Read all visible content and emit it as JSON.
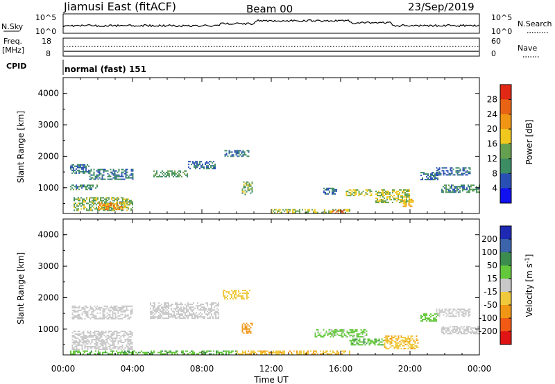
{
  "header": {
    "title": "Jiamusi East (fitACF)",
    "beam": "Beam 00",
    "date": "23/Sep/2019"
  },
  "top_panel": {
    "nsky_label": "N.Sky",
    "nsky_ticks": [
      "10^5",
      "10^0"
    ],
    "nsearch_label": "N.Search",
    "nsearch_ticks": [
      "10^5",
      "10^0"
    ],
    "freq_label": "Freq.",
    "freq_unit": "[MHz]",
    "freq_ticks": [
      "18",
      "8"
    ],
    "nave_label": "Nave",
    "nave_ticks": [
      "60",
      "0"
    ],
    "cpid_label": "CPID",
    "cpid_value": "normal (fast) 151"
  },
  "chart_data": [
    {
      "type": "heatmap",
      "name": "power-panel",
      "ylabel": "Slant Range [km]",
      "ylim": [
        180,
        4500
      ],
      "yticks": [
        "1000",
        "2000",
        "3000",
        "4000"
      ],
      "xlim_hours": [
        0,
        24
      ],
      "colorbar": {
        "label": "Power [dB]",
        "tick_labels": [
          "4",
          "8",
          "12",
          "16",
          "20",
          "24",
          "28"
        ],
        "colors": [
          "#1010f0",
          "#2850b4",
          "#3c8c64",
          "#64a050",
          "#f0c81e",
          "#f09614",
          "#e86414",
          "#e02814"
        ]
      },
      "regions": [
        {
          "x": [
            0.4,
            1.5
          ],
          "y": [
            1450,
            1750
          ],
          "value": 8
        },
        {
          "x": [
            1.5,
            4.0
          ],
          "y": [
            1250,
            1600
          ],
          "value": 8
        },
        {
          "x": [
            5.2,
            7.2
          ],
          "y": [
            1350,
            1550
          ],
          "value": 12
        },
        {
          "x": [
            7.2,
            8.8
          ],
          "y": [
            1600,
            1850
          ],
          "value": 8
        },
        {
          "x": [
            9.3,
            10.7
          ],
          "y": [
            2000,
            2200
          ],
          "value": 8
        },
        {
          "x": [
            10.3,
            10.9
          ],
          "y": [
            800,
            1200
          ],
          "value": 14
        },
        {
          "x": [
            0.4,
            2.0
          ],
          "y": [
            950,
            1100
          ],
          "value": 10
        },
        {
          "x": [
            0.6,
            4.0
          ],
          "y": [
            300,
            700
          ],
          "value": 14
        },
        {
          "x": [
            2.0,
            3.6
          ],
          "y": [
            300,
            550
          ],
          "value": 22
        },
        {
          "x": [
            15.0,
            15.8
          ],
          "y": [
            800,
            1000
          ],
          "value": 8
        },
        {
          "x": [
            16.3,
            17.8
          ],
          "y": [
            750,
            950
          ],
          "value": 16
        },
        {
          "x": [
            18.0,
            20.0
          ],
          "y": [
            550,
            950
          ],
          "value": 16
        },
        {
          "x": [
            19.5,
            20.2
          ],
          "y": [
            400,
            650
          ],
          "value": 20
        },
        {
          "x": [
            20.6,
            21.6
          ],
          "y": [
            1250,
            1500
          ],
          "value": 8
        },
        {
          "x": [
            21.5,
            23.5
          ],
          "y": [
            1400,
            1650
          ],
          "value": 8
        },
        {
          "x": [
            21.8,
            24.0
          ],
          "y": [
            850,
            1100
          ],
          "value": 10
        },
        {
          "x": [
            12.0,
            16.5
          ],
          "y": [
            200,
            320
          ],
          "value": 16
        },
        {
          "x": [
            15.5,
            16.2
          ],
          "y": [
            200,
            300
          ],
          "value": 28
        }
      ]
    },
    {
      "type": "heatmap",
      "name": "velocity-panel",
      "ylabel": "Slant Range [km]",
      "ylim": [
        180,
        4500
      ],
      "yticks": [
        "1000",
        "2000",
        "3000",
        "4000"
      ],
      "xlim_hours": [
        0,
        24
      ],
      "xticks": [
        "00:00",
        "04:00",
        "08:00",
        "12:00",
        "16:00",
        "20:00",
        "00:00"
      ],
      "xlabel": "Time UT",
      "colorbar": {
        "label": "Velocity [m s",
        "label_sup": "-1",
        "tick_labels": [
          "200",
          "100",
          "50",
          "15",
          "-15",
          "-50",
          "-100",
          "-200"
        ],
        "colors": [
          "#1e2ab4",
          "#3c64aa",
          "#3c8c50",
          "#64c83c",
          "#c8c8c8",
          "#f0c83c",
          "#f09614",
          "#f05a14",
          "#e01414"
        ]
      },
      "regions": [
        {
          "x": [
            0.5,
            4.0
          ],
          "y": [
            1350,
            1750
          ],
          "value": 0
        },
        {
          "x": [
            5.0,
            9.0
          ],
          "y": [
            1350,
            1850
          ],
          "value": 0
        },
        {
          "x": [
            9.2,
            10.8
          ],
          "y": [
            1950,
            2250
          ],
          "value": -30
        },
        {
          "x": [
            10.3,
            10.9
          ],
          "y": [
            850,
            1200
          ],
          "value": -80
        },
        {
          "x": [
            0.5,
            4.0
          ],
          "y": [
            350,
            950
          ],
          "value": 0
        },
        {
          "x": [
            14.5,
            17.5
          ],
          "y": [
            750,
            1000
          ],
          "value": 25
        },
        {
          "x": [
            16.5,
            18.5
          ],
          "y": [
            500,
            700
          ],
          "value": 40
        },
        {
          "x": [
            18.5,
            20.5
          ],
          "y": [
            400,
            800
          ],
          "value": -40
        },
        {
          "x": [
            20.6,
            21.6
          ],
          "y": [
            1250,
            1500
          ],
          "value": 30
        },
        {
          "x": [
            21.5,
            23.5
          ],
          "y": [
            1400,
            1650
          ],
          "value": 0
        },
        {
          "x": [
            21.8,
            24.0
          ],
          "y": [
            850,
            1100
          ],
          "value": 0
        },
        {
          "x": [
            10.0,
            16.5
          ],
          "y": [
            200,
            320
          ],
          "value": -40
        },
        {
          "x": [
            0.4,
            10.0
          ],
          "y": [
            200,
            320
          ],
          "value": 40
        }
      ]
    }
  ]
}
